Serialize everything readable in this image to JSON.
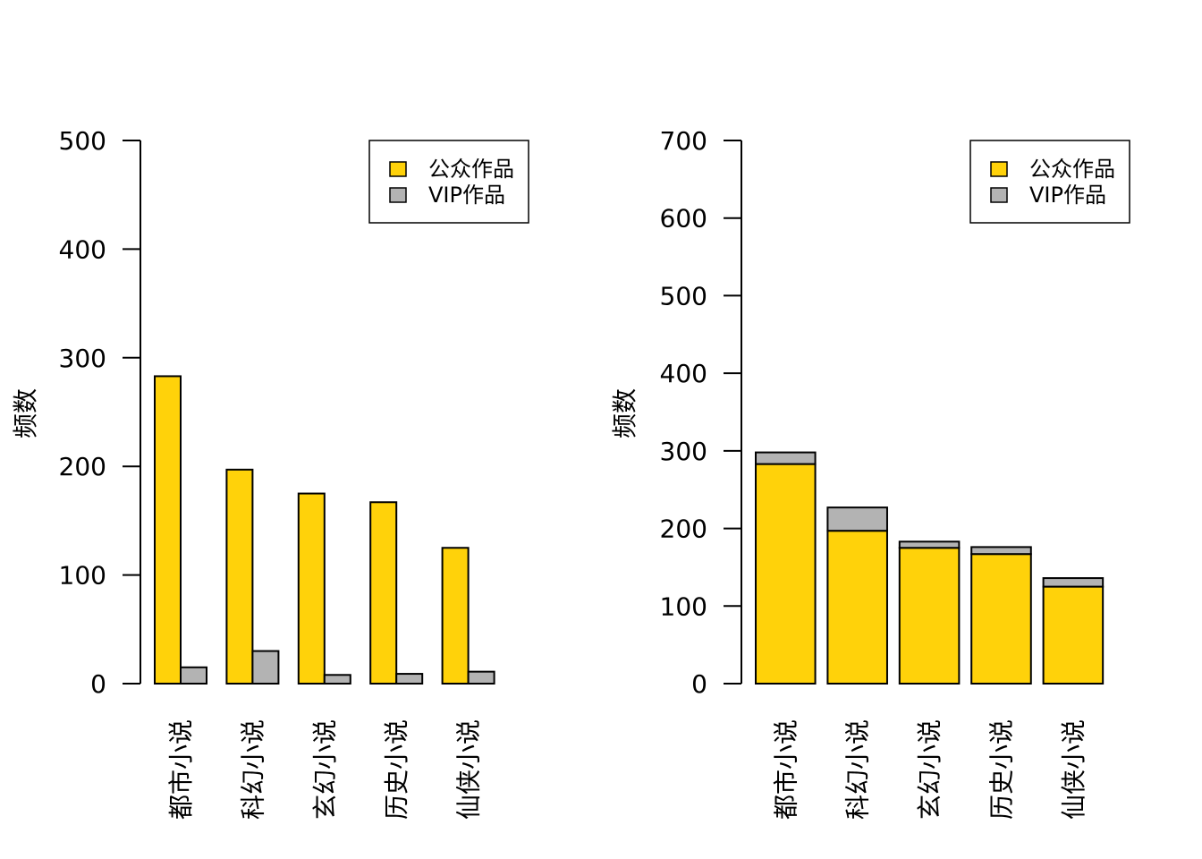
{
  "colors": {
    "public": "#FFD20A",
    "vip": "#B3B3B3",
    "stroke": "#000000",
    "background": "#FFFFFF"
  },
  "chart_data": [
    {
      "type": "bar",
      "mode": "grouped",
      "categories": [
        "都市小说",
        "科幻小说",
        "玄幻小说",
        "历史小说",
        "仙侠小说"
      ],
      "series": [
        {
          "name": "公众作品",
          "values": [
            283,
            197,
            175,
            167,
            125
          ]
        },
        {
          "name": "VIP作品",
          "values": [
            15,
            30,
            8,
            9,
            11
          ]
        }
      ],
      "title": "",
      "xlabel": "",
      "ylabel": "频数",
      "ylim": [
        0,
        500
      ],
      "yticks": [
        0,
        100,
        200,
        300,
        400,
        500
      ],
      "legend": "top-right",
      "grid": false
    },
    {
      "type": "bar",
      "mode": "stacked",
      "categories": [
        "都市小说",
        "科幻小说",
        "玄幻小说",
        "历史小说",
        "仙侠小说"
      ],
      "series": [
        {
          "name": "公众作品",
          "values": [
            283,
            197,
            175,
            167,
            125
          ]
        },
        {
          "name": "VIP作品",
          "values": [
            15,
            30,
            8,
            9,
            11
          ]
        }
      ],
      "title": "",
      "xlabel": "",
      "ylabel": "频数",
      "ylim": [
        0,
        700
      ],
      "yticks": [
        0,
        100,
        200,
        300,
        400,
        500,
        600,
        700
      ],
      "legend": "top-right",
      "grid": false
    }
  ]
}
